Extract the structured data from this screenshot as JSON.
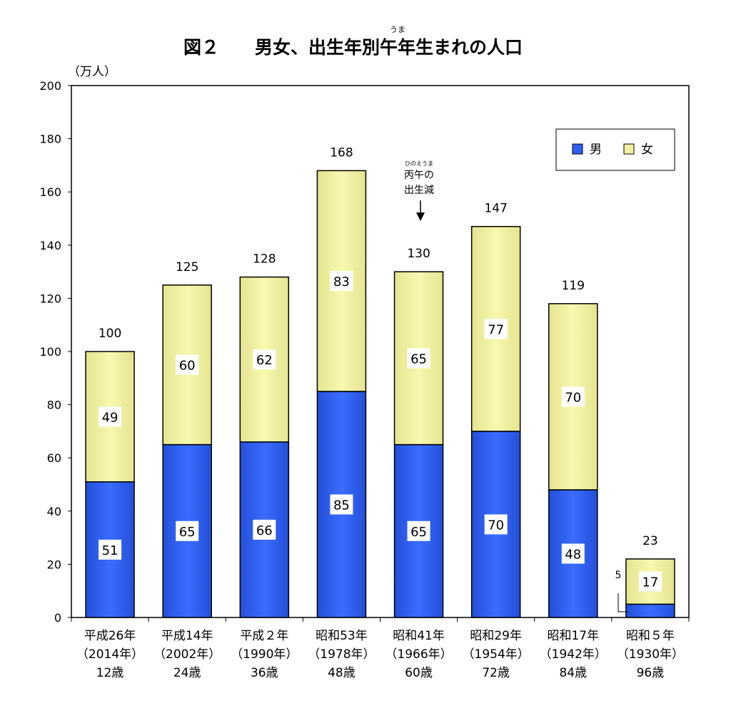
{
  "chart_data": {
    "type": "bar",
    "stacked": true,
    "title": "図２　　男女、出生年別午年生まれの人口",
    "title_ruby": "うま",
    "ylabel": "（万人）",
    "ylim": [
      0,
      200
    ],
    "yticks": [
      0,
      20,
      40,
      60,
      80,
      100,
      120,
      140,
      160,
      180,
      200
    ],
    "grid": false,
    "legend_position": "top-right",
    "categories": [
      [
        "平成26年",
        "（2014年）",
        "12歳"
      ],
      [
        "平成14年",
        "（2002年）",
        "24歳"
      ],
      [
        "平成２年",
        "（1990年）",
        "36歳"
      ],
      [
        "昭和53年",
        "（1978年）",
        "48歳"
      ],
      [
        "昭和41年",
        "（1966年）",
        "60歳"
      ],
      [
        "昭和29年",
        "（1954年）",
        "72歳"
      ],
      [
        "昭和17年",
        "（1942年）",
        "84歳"
      ],
      [
        "昭和５年",
        "（1930年）",
        "96歳"
      ]
    ],
    "series": [
      {
        "name": "男",
        "color": "#2f5ff0",
        "values": [
          51,
          65,
          66,
          85,
          65,
          70,
          48,
          5
        ]
      },
      {
        "name": "女",
        "color": "#f0f0a0",
        "values": [
          49,
          60,
          62,
          83,
          65,
          77,
          70,
          17
        ]
      }
    ],
    "totals": [
      100,
      125,
      128,
      168,
      130,
      147,
      119,
      23
    ],
    "annotation": {
      "ruby": "ひのえうま",
      "lines": [
        "丙午の",
        "出生減"
      ],
      "category_index": 4
    }
  }
}
